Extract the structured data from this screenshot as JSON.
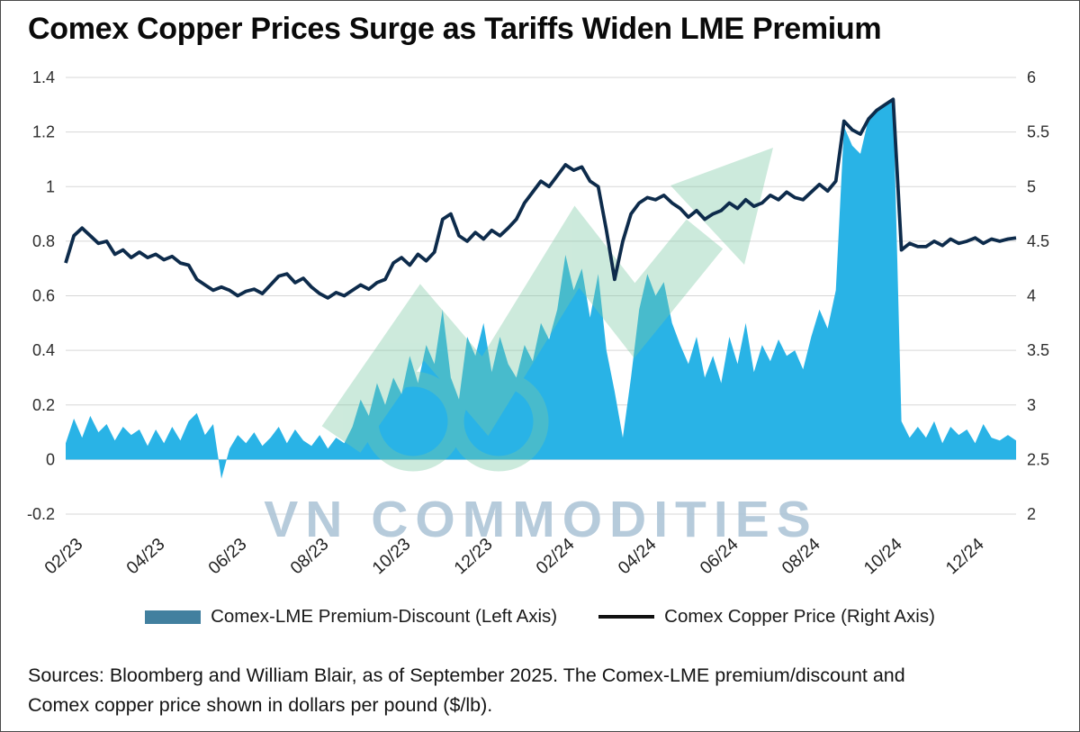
{
  "title": "Comex Copper Prices Surge as Tariffs Widen LME Premium",
  "watermark": {
    "text": "VN COMMODITIES"
  },
  "legend": [
    {
      "label": "Comex-LME Premium-Discount (Left Axis)",
      "type": "area",
      "swatch_color": "#42809f"
    },
    {
      "label": "Comex Copper Price (Right Axis)",
      "type": "line",
      "swatch_color": "#111111"
    }
  ],
  "source_lines": [
    "Sources: Bloomberg and William Blair, as of September 2025. The Comex-LME premium/discount and",
    "Comex copper price shown in dollars per pound ($/lb)."
  ],
  "chart_data": {
    "type": "area+line combo",
    "grid": "horizontal",
    "x_tick_labels": [
      "02/23",
      "04/23",
      "06/23",
      "08/23",
      "10/23",
      "12/23",
      "02/24",
      "04/24",
      "06/24",
      "08/24",
      "10/24",
      "12/24"
    ],
    "left_axis": {
      "ticks": [
        "1.4",
        "1.2",
        "1",
        "0.8",
        "0.6",
        "0.4",
        "0.2",
        "0",
        "-0.2"
      ],
      "range": [
        -0.2,
        1.4
      ]
    },
    "right_axis": {
      "ticks": [
        "6",
        "5.5",
        "5",
        "4.5",
        "4",
        "3.5",
        "3",
        "2.5",
        "2"
      ],
      "range": [
        2,
        6
      ]
    },
    "series": [
      {
        "name": "Comex-LME Premium-Discount",
        "axis": "left",
        "type": "area",
        "color": "#29b3e6",
        "values": [
          0.06,
          0.15,
          0.08,
          0.16,
          0.1,
          0.13,
          0.07,
          0.12,
          0.09,
          0.11,
          0.05,
          0.11,
          0.06,
          0.12,
          0.07,
          0.14,
          0.17,
          0.09,
          0.13,
          -0.07,
          0.04,
          0.09,
          0.06,
          0.1,
          0.05,
          0.08,
          0.12,
          0.06,
          0.11,
          0.07,
          0.05,
          0.09,
          0.04,
          0.08,
          0.06,
          0.12,
          0.22,
          0.16,
          0.28,
          0.2,
          0.3,
          0.24,
          0.38,
          0.28,
          0.42,
          0.35,
          0.55,
          0.3,
          0.22,
          0.45,
          0.38,
          0.5,
          0.32,
          0.45,
          0.35,
          0.3,
          0.42,
          0.36,
          0.5,
          0.44,
          0.55,
          0.75,
          0.62,
          0.7,
          0.52,
          0.68,
          0.4,
          0.25,
          0.08,
          0.3,
          0.55,
          0.68,
          0.6,
          0.65,
          0.5,
          0.42,
          0.35,
          0.45,
          0.3,
          0.38,
          0.28,
          0.45,
          0.35,
          0.5,
          0.32,
          0.42,
          0.36,
          0.44,
          0.38,
          0.4,
          0.33,
          0.45,
          0.55,
          0.48,
          0.62,
          1.22,
          1.15,
          1.12,
          1.25,
          1.28,
          1.3,
          1.32,
          0.14,
          0.08,
          0.12,
          0.08,
          0.14,
          0.06,
          0.12,
          0.09,
          0.11,
          0.06,
          0.13,
          0.08,
          0.07,
          0.09,
          0.07
        ]
      },
      {
        "name": "Comex Copper Price",
        "axis": "right",
        "type": "line",
        "color": "#0d2b4b",
        "values": [
          4.3,
          4.55,
          4.62,
          4.55,
          4.48,
          4.5,
          4.38,
          4.42,
          4.35,
          4.4,
          4.35,
          4.38,
          4.33,
          4.36,
          4.3,
          4.28,
          4.15,
          4.1,
          4.05,
          4.08,
          4.05,
          4.0,
          4.04,
          4.06,
          4.02,
          4.1,
          4.18,
          4.2,
          4.12,
          4.16,
          4.08,
          4.02,
          3.98,
          4.03,
          4.0,
          4.05,
          4.1,
          4.06,
          4.12,
          4.15,
          4.3,
          4.35,
          4.28,
          4.38,
          4.32,
          4.4,
          4.7,
          4.75,
          4.55,
          4.5,
          4.58,
          4.52,
          4.6,
          4.55,
          4.62,
          4.7,
          4.85,
          4.95,
          5.05,
          5.0,
          5.1,
          5.2,
          5.15,
          5.18,
          5.05,
          5.0,
          4.6,
          4.15,
          4.5,
          4.75,
          4.85,
          4.9,
          4.88,
          4.92,
          4.85,
          4.8,
          4.72,
          4.78,
          4.7,
          4.75,
          4.78,
          4.85,
          4.8,
          4.88,
          4.82,
          4.85,
          4.92,
          4.88,
          4.95,
          4.9,
          4.88,
          4.95,
          5.02,
          4.96,
          5.05,
          5.6,
          5.52,
          5.48,
          5.62,
          5.7,
          5.75,
          5.8,
          4.42,
          4.48,
          4.45,
          4.45,
          4.5,
          4.46,
          4.52,
          4.48,
          4.5,
          4.53,
          4.48,
          4.52,
          4.5,
          4.52,
          4.53
        ]
      }
    ]
  }
}
